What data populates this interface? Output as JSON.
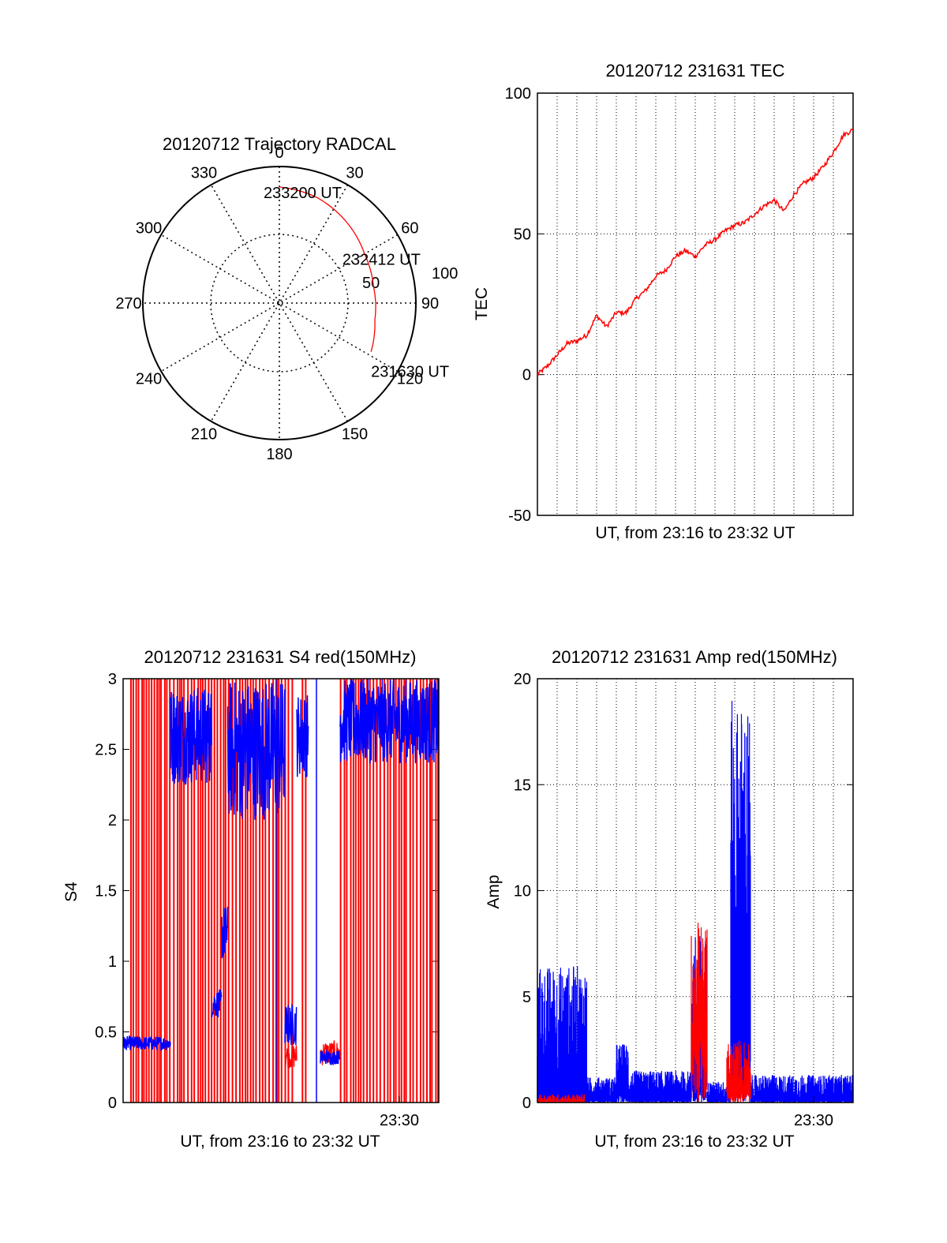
{
  "chart_data": [
    {
      "type": "polar-trajectory",
      "title": "20120712 Trajectory RADCAL",
      "azimuth_labels": [
        "0",
        "30",
        "60",
        "90",
        "120",
        "150",
        "180",
        "210",
        "240",
        "270",
        "300",
        "330"
      ],
      "radius_labels": [
        "50",
        "100"
      ],
      "series_color": "#ff0000",
      "trajectory": [
        {
          "az": 0,
          "r": 85
        },
        {
          "az": 20,
          "r": 82
        },
        {
          "az": 40,
          "r": 77
        },
        {
          "az": 60,
          "r": 72
        },
        {
          "az": 80,
          "r": 70
        },
        {
          "az": 100,
          "r": 71
        },
        {
          "az": 118,
          "r": 76
        }
      ],
      "annotations": [
        {
          "text": "233200 UT",
          "az": 0,
          "r": 85
        },
        {
          "text": "232412 UT",
          "az": 60,
          "r": 72
        },
        {
          "text": "231630 UT",
          "az": 118,
          "r": 76
        }
      ]
    },
    {
      "type": "line",
      "title": "20120712 231631 TEC",
      "xlabel": "UT, from 23:16 to 23:32 UT",
      "ylabel": "TEC",
      "xlim": [
        0,
        16
      ],
      "ylim": [
        -50,
        100
      ],
      "yticks": [
        "100",
        "50",
        "0",
        "-50"
      ],
      "grid": true,
      "series": [
        {
          "color": "#ff0000",
          "x": [
            0.0,
            0.5,
            1.0,
            1.5,
            2.0,
            2.5,
            3.0,
            3.5,
            4.0,
            4.5,
            5.0,
            5.5,
            6.0,
            6.5,
            7.0,
            7.5,
            8.0,
            8.5,
            9.0,
            9.5,
            10.0,
            10.5,
            11.0,
            11.5,
            12.0,
            12.5,
            13.0,
            13.5,
            14.0,
            14.5,
            15.0,
            15.5,
            16.0
          ],
          "y": [
            0,
            3,
            7,
            11,
            12,
            14,
            21,
            17,
            22,
            22,
            27,
            30,
            35,
            37,
            42,
            44,
            42,
            46,
            48,
            51,
            53,
            54,
            57,
            60,
            62,
            58,
            64,
            68,
            70,
            74,
            79,
            85,
            87
          ]
        }
      ]
    },
    {
      "type": "line",
      "title": "20120712 231631 S4 red(150MHz)",
      "xlabel": "UT, from 23:16 to 23:32 UT",
      "ylabel": "S4",
      "xlim": [
        0,
        16
      ],
      "ylim": [
        0,
        3
      ],
      "yticks": [
        "3",
        "2.5",
        "2",
        "1.5",
        "1",
        "0.5",
        "0"
      ],
      "xtick_label": "23:30",
      "xtick_value": 14,
      "series": [
        {
          "color": "#0000ff",
          "note": "blue channel"
        },
        {
          "color": "#ff0000",
          "note": "red channel"
        }
      ],
      "blue_segments": [
        {
          "x0": 0.0,
          "x1": 2.4,
          "base": 0.42,
          "amp": 0.05
        },
        {
          "x0": 2.4,
          "x1": 4.5,
          "base": 2.6,
          "amp": 0.35
        },
        {
          "x0": 4.5,
          "x1": 5.0,
          "base": 0.7,
          "amp": 0.1
        },
        {
          "x0": 5.0,
          "x1": 5.3,
          "base": 1.2,
          "amp": 0.2
        },
        {
          "x0": 5.3,
          "x1": 8.2,
          "base": 2.5,
          "amp": 0.5
        },
        {
          "x0": 8.2,
          "x1": 8.8,
          "base": 0.55,
          "amp": 0.15
        },
        {
          "x0": 8.8,
          "x1": 9.4,
          "base": 2.6,
          "amp": 0.3
        },
        {
          "x0": 10.0,
          "x1": 11.0,
          "base": 0.32,
          "amp": 0.05
        },
        {
          "x0": 11.0,
          "x1": 16.0,
          "base": 2.7,
          "amp": 0.3
        }
      ]
    },
    {
      "type": "line",
      "title": "20120712 231631 Amp red(150MHz)",
      "xlabel": "UT, from 23:16 to 23:32 UT",
      "ylabel": "Amp",
      "xlim": [
        0,
        16
      ],
      "ylim": [
        0,
        20
      ],
      "yticks": [
        "20",
        "15",
        "10",
        "5",
        "0"
      ],
      "xtick_label": "23:30",
      "xtick_value": 14,
      "grid": true,
      "blue_segments": [
        {
          "x0": 0.0,
          "x1": 2.5,
          "top": 6.5,
          "base": 0.2
        },
        {
          "x0": 2.5,
          "x1": 4.0,
          "top": 1.2,
          "base": 0.1
        },
        {
          "x0": 4.0,
          "x1": 4.6,
          "top": 2.8,
          "base": 0.5
        },
        {
          "x0": 4.6,
          "x1": 7.8,
          "top": 1.5,
          "base": 0.1
        },
        {
          "x0": 7.8,
          "x1": 8.6,
          "top": 8.0,
          "base": 1.0
        },
        {
          "x0": 8.6,
          "x1": 9.8,
          "top": 1.0,
          "base": 0.1
        },
        {
          "x0": 9.8,
          "x1": 10.8,
          "top": 19.0,
          "base": 2.0
        },
        {
          "x0": 10.8,
          "x1": 16.0,
          "top": 1.3,
          "base": 0.1
        }
      ],
      "red_segments": [
        {
          "x0": 0.0,
          "x1": 2.4,
          "top": 0.4,
          "base": 0.0
        },
        {
          "x0": 7.8,
          "x1": 8.6,
          "top": 8.5,
          "base": 3.0
        },
        {
          "x0": 9.6,
          "x1": 10.8,
          "top": 3.0,
          "base": 0.5
        }
      ]
    }
  ]
}
